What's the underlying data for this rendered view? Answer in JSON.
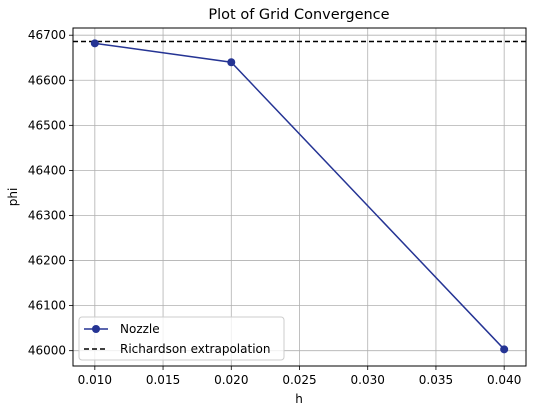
{
  "chart_data": {
    "type": "line",
    "title": "Plot of Grid Convergence",
    "xlabel": "h",
    "ylabel": "phi",
    "xlim": [
      0.0084,
      0.0416
    ],
    "ylim": [
      45966,
      46716
    ],
    "x_ticks": [
      0.01,
      0.015,
      0.02,
      0.025,
      0.03,
      0.035,
      0.04
    ],
    "x_tick_labels": [
      "0.010",
      "0.015",
      "0.020",
      "0.025",
      "0.030",
      "0.035",
      "0.040"
    ],
    "y_ticks": [
      46000,
      46100,
      46200,
      46300,
      46400,
      46500,
      46600,
      46700
    ],
    "y_tick_labels": [
      "46000",
      "46100",
      "46200",
      "46300",
      "46400",
      "46500",
      "46600",
      "46700"
    ],
    "grid": true,
    "legend_position": "lower-left",
    "series": [
      {
        "name": "Nozzle",
        "kind": "line-marker",
        "color": "#253494",
        "x": [
          0.01,
          0.02,
          0.04
        ],
        "y": [
          46682,
          46640,
          46003
        ]
      },
      {
        "name": "Richardson extrapolation",
        "kind": "hline-dashed",
        "color": "#000000",
        "y": 46686
      }
    ]
  }
}
